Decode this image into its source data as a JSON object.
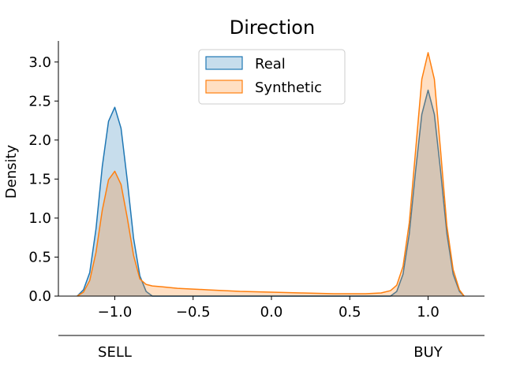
{
  "chart_data": {
    "type": "area",
    "title": "Direction",
    "xlabel": "",
    "ylabel": "Density",
    "xlim": [
      -1.36,
      1.36
    ],
    "ylim": [
      0,
      3.27
    ],
    "x_ticks": [
      "−1.0",
      "−0.5",
      "0.0",
      "0.5",
      "1.0"
    ],
    "x_tick_values": [
      -1.0,
      -0.5,
      0.0,
      0.5,
      1.0
    ],
    "y_ticks": [
      "0.0",
      "0.5",
      "1.0",
      "1.5",
      "2.0",
      "2.5",
      "3.0"
    ],
    "y_tick_values": [
      0,
      0.5,
      1.0,
      1.5,
      2.0,
      2.5,
      3.0
    ],
    "secondary_x_ticks": [
      {
        "value": -1.0,
        "label": "SELL"
      },
      {
        "value": 1.0,
        "label": "BUY"
      }
    ],
    "legend_placement": "top-center",
    "grid": false,
    "series": [
      {
        "name": "Real",
        "line_color": "#1f77b4",
        "fill_color": "#1f77b4",
        "x": [
          -1.24,
          -1.2,
          -1.16,
          -1.12,
          -1.08,
          -1.04,
          -1.0,
          -0.96,
          -0.92,
          -0.88,
          -0.84,
          -0.8,
          -0.76,
          0.76,
          0.8,
          0.84,
          0.88,
          0.92,
          0.96,
          1.0,
          1.04,
          1.08,
          1.12,
          1.16,
          1.2,
          1.23
        ],
        "y": [
          0.0,
          0.08,
          0.3,
          0.86,
          1.66,
          2.24,
          2.42,
          2.15,
          1.48,
          0.74,
          0.26,
          0.06,
          0.0,
          0.0,
          0.06,
          0.28,
          0.8,
          1.6,
          2.33,
          2.64,
          2.33,
          1.6,
          0.8,
          0.28,
          0.06,
          0.0
        ]
      },
      {
        "name": "Synthetic",
        "line_color": "#ff7f0e",
        "fill_color": "#ff7f0e",
        "x": [
          -1.24,
          -1.2,
          -1.16,
          -1.12,
          -1.08,
          -1.04,
          -1.0,
          -0.96,
          -0.92,
          -0.88,
          -0.84,
          -0.8,
          -0.76,
          -0.7,
          -0.6,
          -0.5,
          -0.4,
          -0.2,
          0.0,
          0.2,
          0.4,
          0.6,
          0.7,
          0.76,
          0.8,
          0.84,
          0.88,
          0.92,
          0.96,
          1.0,
          1.04,
          1.08,
          1.12,
          1.16,
          1.2,
          1.23
        ],
        "y": [
          0.0,
          0.05,
          0.2,
          0.56,
          1.1,
          1.49,
          1.6,
          1.43,
          1.0,
          0.52,
          0.22,
          0.15,
          0.13,
          0.12,
          0.1,
          0.09,
          0.08,
          0.06,
          0.05,
          0.04,
          0.03,
          0.03,
          0.04,
          0.07,
          0.14,
          0.38,
          0.94,
          1.86,
          2.78,
          3.12,
          2.78,
          1.86,
          0.9,
          0.34,
          0.08,
          0.0
        ]
      }
    ]
  }
}
